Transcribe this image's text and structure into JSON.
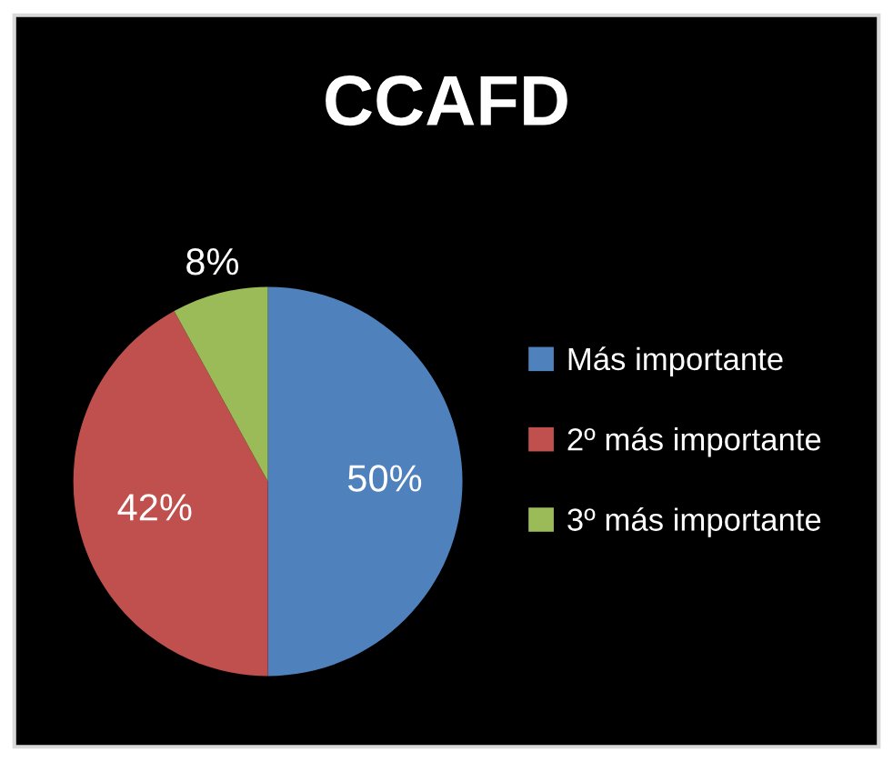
{
  "chart_data": {
    "type": "pie",
    "title": "CCAFD",
    "categories": [
      "Más importante",
      "2º más importante",
      "3º más importante"
    ],
    "values": [
      50,
      42,
      8
    ],
    "colors": [
      "#4f81bd",
      "#c0504d",
      "#9bbb59"
    ],
    "value_labels": [
      "50%",
      "42%",
      "8%"
    ],
    "legend": "right"
  }
}
